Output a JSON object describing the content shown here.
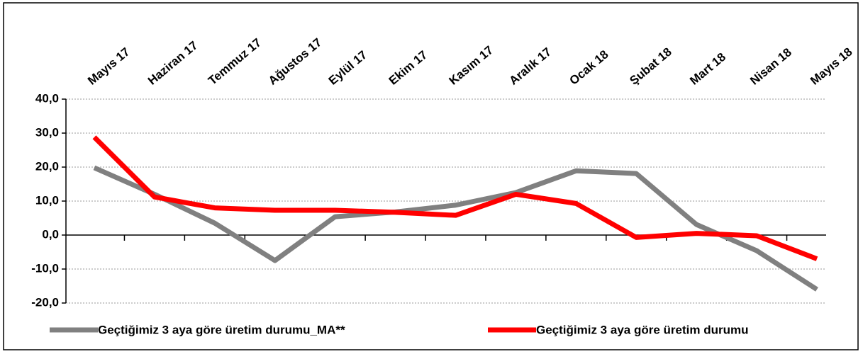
{
  "chart_data": {
    "type": "line",
    "categories": [
      "Mayıs 17",
      "Haziran 17",
      "Temmuz 17",
      "Ağustos 17",
      "Eylül 17",
      "Ekim 17",
      "Kasım 17",
      "Aralık 17",
      "Ocak 18",
      "Şubat 18",
      "Mart 18",
      "Nisan 18",
      "Mayıs 18"
    ],
    "series": [
      {
        "name": "Geçtiğimiz 3 aya göre üretim durumu_MA**",
        "color": "#808080",
        "values": [
          19.8,
          12.0,
          3.5,
          -7.5,
          5.4,
          6.8,
          8.8,
          12.5,
          18.9,
          18.1,
          3.1,
          -4.6,
          -16.0
        ]
      },
      {
        "name": "Geçtiğimiz 3 aya göre üretim durumu",
        "color": "#ff0000",
        "values": [
          28.8,
          11.2,
          8.0,
          7.3,
          7.3,
          6.7,
          5.8,
          12.0,
          9.3,
          -0.7,
          0.5,
          -0.2,
          -7.0
        ]
      }
    ],
    "ylim": [
      -20,
      40
    ],
    "yticks": [
      {
        "value": -20,
        "label": "-20,0"
      },
      {
        "value": -10,
        "label": "-10,0"
      },
      {
        "value": 0,
        "label": "0,0"
      },
      {
        "value": 10,
        "label": "10,0"
      },
      {
        "value": 20,
        "label": "20,0"
      },
      {
        "value": 30,
        "label": "30,0"
      },
      {
        "value": 40,
        "label": "40,0"
      }
    ],
    "grid": true,
    "legend": "bottom"
  }
}
